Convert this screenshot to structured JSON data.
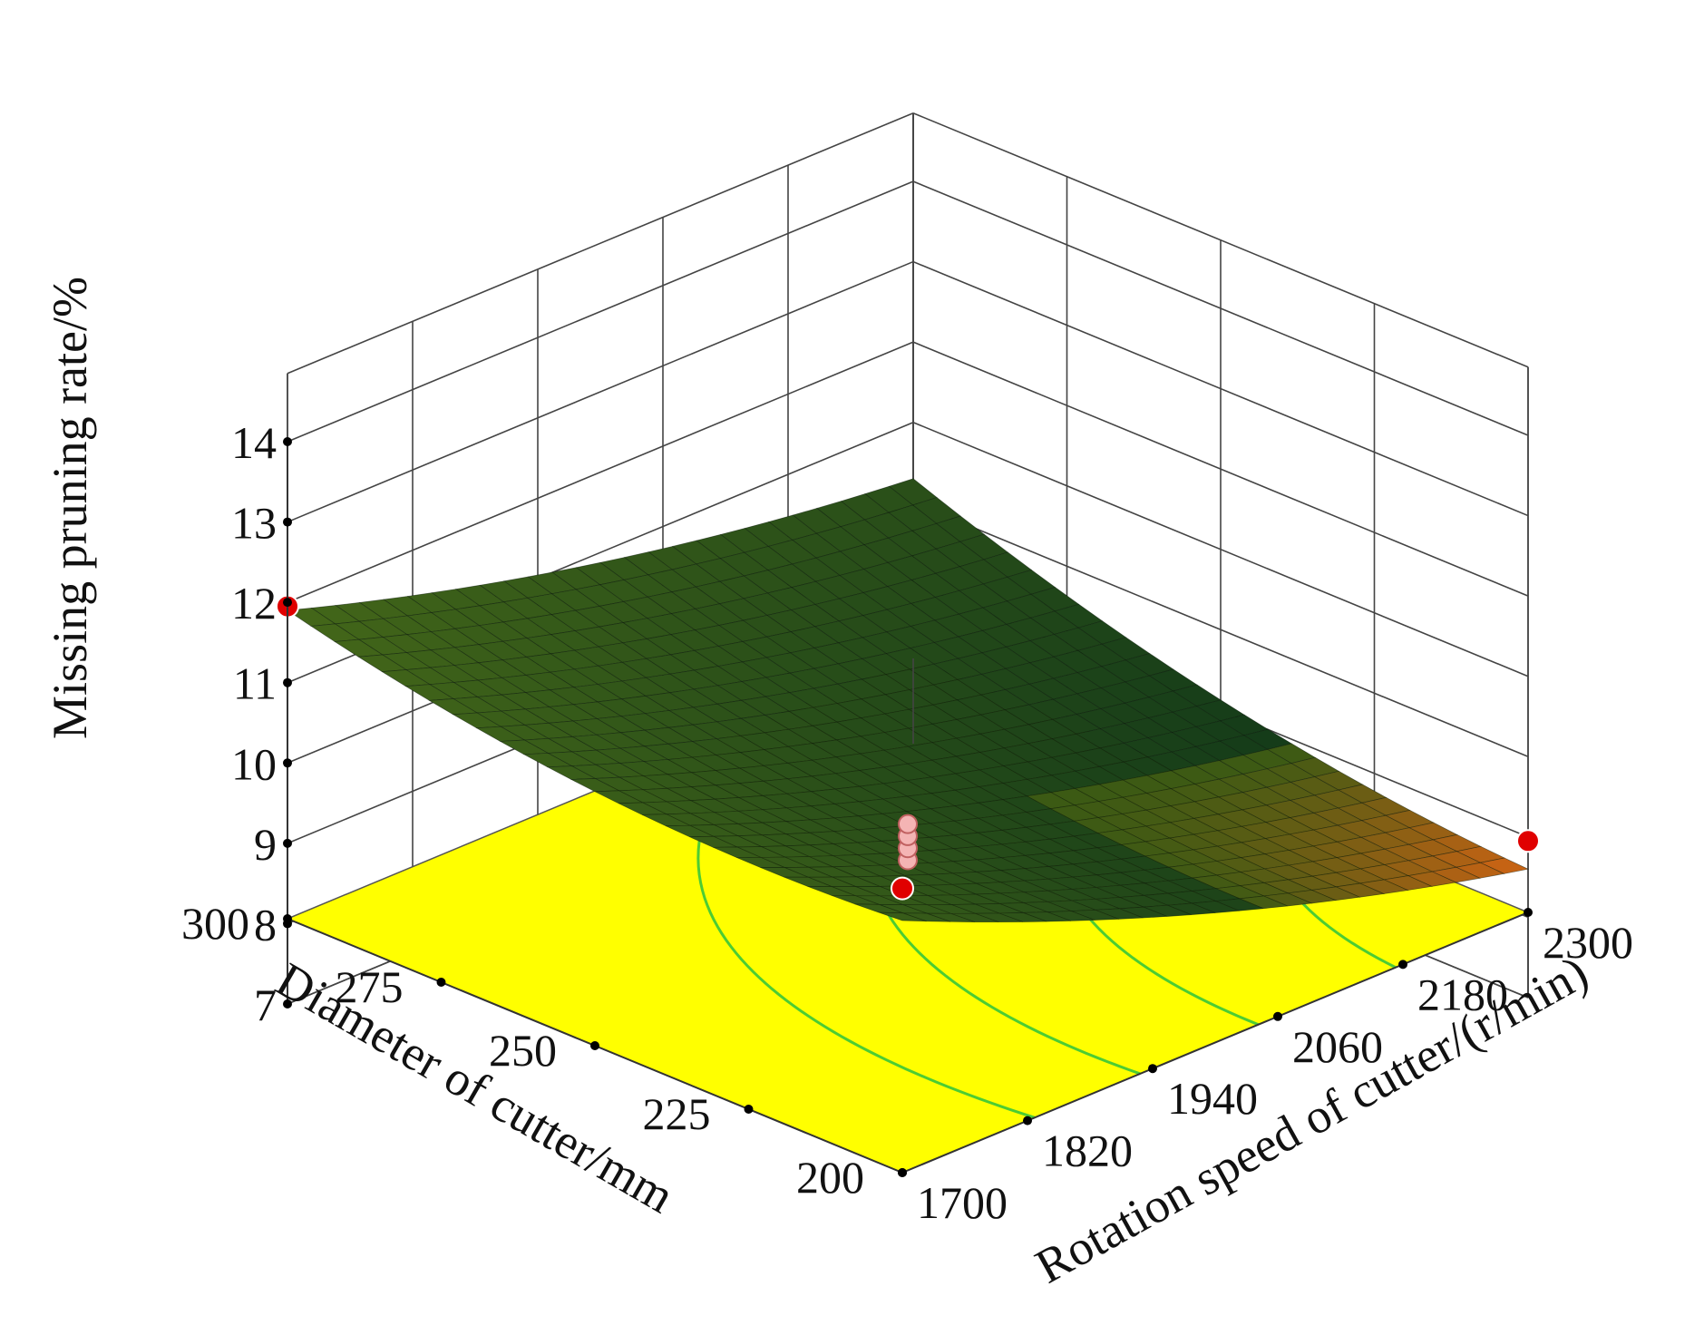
{
  "chart_data": {
    "type": "surface3d",
    "x_axis": {
      "label": "Diameter of cutter/mm",
      "ticks": [
        "200",
        "225",
        "250",
        "275",
        "300"
      ],
      "range": [
        200,
        300
      ]
    },
    "y_axis": {
      "label": "Rotation speed of cutter/(r/min)",
      "ticks": [
        "1700",
        "1820",
        "1940",
        "2060",
        "2180",
        "2300"
      ],
      "range": [
        1700,
        2300
      ]
    },
    "z_axis": {
      "label": "Missing pruning rate/%",
      "ticks": [
        "7",
        "8",
        "9",
        "10",
        "11",
        "12",
        "13",
        "14"
      ],
      "range": [
        7,
        14
      ]
    },
    "surface_corners": [
      {
        "diameter": 300,
        "speed": 1700,
        "rate": 11.9
      },
      {
        "diameter": 200,
        "speed": 1700,
        "rate": 11.2
      },
      {
        "diameter": 200,
        "speed": 2300,
        "rate": 8.6
      },
      {
        "diameter": 300,
        "speed": 2300,
        "rate": 10.3
      }
    ],
    "design_points": [
      {
        "diameter": 300,
        "speed": 1700,
        "rate": 11.95
      },
      {
        "diameter": 200,
        "speed": 1700,
        "rate": 11.6
      },
      {
        "diameter": 200,
        "speed": 2300,
        "rate": 8.95
      },
      {
        "diameter": 250,
        "speed": 2000,
        "rate": 8.75
      },
      {
        "diameter": 250,
        "speed": 2000,
        "rate": 8.9
      },
      {
        "diameter": 250,
        "speed": 2000,
        "rate": 9.05
      },
      {
        "diameter": 250,
        "speed": 2000,
        "rate": 9.2
      }
    ],
    "grid": true,
    "colors": {
      "floor": "#ffff00",
      "contour": "#4ccc33",
      "surface_low": "#0a3a10",
      "surface_high": "#c0641a",
      "point": "#e00000",
      "point_light": "#f4b4b4"
    }
  }
}
